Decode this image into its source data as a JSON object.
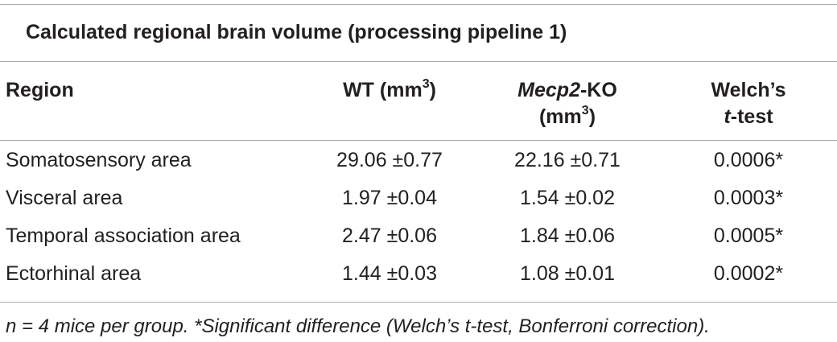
{
  "caption": "Calculated regional brain volume (processing pipeline 1)",
  "headers": {
    "region": "Region",
    "wt": "WT (mm",
    "wt_sup": "3",
    "wt_close": ")",
    "ko_italic": "Mecp2",
    "ko_rest": "-KO",
    "ko_line2": "(mm",
    "ko_sup": "3",
    "ko_close": ")",
    "welch_line1": "Welch’s",
    "welch_italic": "t",
    "welch_rest": "-test"
  },
  "rows": [
    {
      "region": "Somatosensory area",
      "wt": "29.06 ±0.77",
      "ko": "22.16 ±0.71",
      "p": "0.0006*"
    },
    {
      "region": "Visceral area",
      "wt": "1.97 ±0.04",
      "ko": "1.54 ±0.02",
      "p": "0.0003*"
    },
    {
      "region": "Temporal association area",
      "wt": "2.47 ±0.06",
      "ko": "1.84 ±0.06",
      "p": "0.0005*"
    },
    {
      "region": "Ectorhinal area",
      "wt": "1.44 ±0.03",
      "ko": "1.08 ±0.01",
      "p": "0.0002*"
    }
  ],
  "footnote": "n = 4 mice per group. *Significant difference (Welch’s t-test, Bonferroni correction)."
}
